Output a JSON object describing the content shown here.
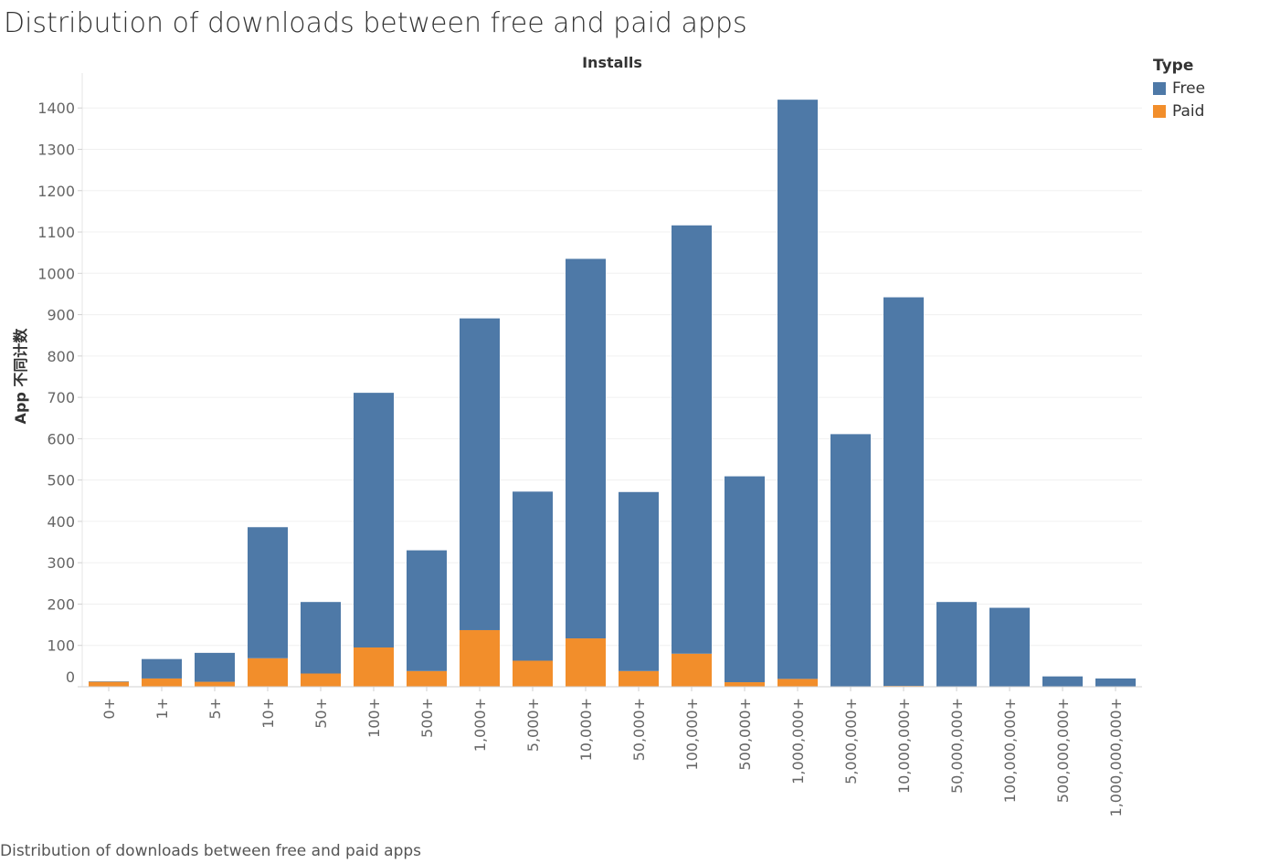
{
  "page_title": "Distribution of downloads between free and paid apps",
  "caption": "Distribution of downloads between free and paid apps",
  "legend": {
    "title": "Type",
    "items": [
      {
        "label": "Free",
        "color": "#4e79a7"
      },
      {
        "label": "Paid",
        "color": "#f28e2b"
      }
    ]
  },
  "chart_data": {
    "type": "bar",
    "stacked": true,
    "title": "Distribution of downloads between free and paid apps",
    "column_header": "Installs",
    "ylabel": "App 不同计数",
    "xlabel": "",
    "ylim": [
      0,
      1450
    ],
    "yticks": [
      0,
      100,
      200,
      300,
      400,
      500,
      600,
      700,
      800,
      900,
      1000,
      1100,
      1200,
      1300,
      1400
    ],
    "categories": [
      "0+",
      "1+",
      "5+",
      "10+",
      "50+",
      "100+",
      "500+",
      "1,000+",
      "5,000+",
      "10,000+",
      "50,000+",
      "100,000+",
      "500,000+",
      "1,000,000+",
      "5,000,000+",
      "10,000,000+",
      "50,000,000+",
      "100,000,000+",
      "500,000,000+",
      "1,000,000,000+"
    ],
    "series": [
      {
        "name": "Paid",
        "color": "#f28e2b",
        "values": [
          12,
          20,
          12,
          69,
          32,
          95,
          38,
          137,
          63,
          117,
          38,
          80,
          11,
          19,
          0,
          2,
          0,
          0,
          0,
          0
        ]
      },
      {
        "name": "Free",
        "color": "#4e79a7",
        "values": [
          1,
          47,
          70,
          317,
          173,
          616,
          292,
          754,
          409,
          918,
          433,
          1036,
          498,
          1401,
          611,
          940,
          205,
          191,
          25,
          20
        ]
      }
    ],
    "grid": true,
    "legend_position": "top-right"
  }
}
